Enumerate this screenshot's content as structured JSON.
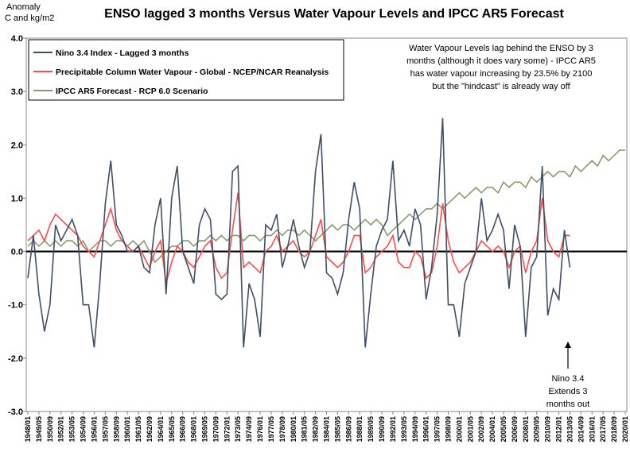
{
  "chart_data": {
    "type": "line",
    "title": "ENSO lagged 3 months Versus Water Vapour Levels and IPCC AR5 Forecast",
    "ylabel": [
      "Anomaly",
      "C and kg/m2"
    ],
    "annotations": [
      {
        "lines": [
          "Water Vapour Levels lag behind the ENSO by 3",
          "months (although it does vary some) - IPCC AR5",
          "has water vapour increasing by 23.5% by 2100",
          "but the \"hindcast\" is already way off"
        ]
      },
      {
        "lines": [
          "Nino 3.4",
          "Extends 3",
          "months out"
        ]
      }
    ],
    "ylim": [
      -3,
      4
    ],
    "yticks": [
      {
        "value": -3,
        "label": "-3.0"
      },
      {
        "value": -2,
        "label": "-2.0"
      },
      {
        "value": -1,
        "label": "-1.0"
      },
      {
        "value": 0,
        "label": "0.0"
      },
      {
        "value": 1,
        "label": "1.0"
      },
      {
        "value": 2,
        "label": "2.0"
      },
      {
        "value": 3,
        "label": "3.0"
      },
      {
        "value": 4,
        "label": "4.0"
      }
    ],
    "grid": false,
    "legend": "top-left",
    "categories": [
      "1948/01",
      null,
      "1949/05",
      null,
      "1950/09",
      null,
      "1952/01",
      null,
      "1953/05",
      null,
      "1954/09",
      null,
      "1956/01",
      null,
      "1957/05",
      null,
      "1958/09",
      null,
      "1960/01",
      null,
      "1961/05",
      null,
      "1962/09",
      null,
      "1964/01",
      null,
      "1965/05",
      null,
      "1966/09",
      null,
      "1968/01",
      null,
      "1969/05",
      null,
      "1970/09",
      null,
      "1972/01",
      null,
      "1973/05",
      null,
      "1974/09",
      null,
      "1976/01",
      null,
      "1977/05",
      null,
      "1978/09",
      null,
      "1980/01",
      null,
      "1981/05",
      null,
      "1982/09",
      null,
      "1984/01",
      null,
      "1985/05",
      null,
      "1986/09",
      null,
      "1988/01",
      null,
      "1989/05",
      null,
      "1990/09",
      null,
      "1992/01",
      null,
      "1993/05",
      null,
      "1994/09",
      null,
      "1996/01",
      null,
      "1997/05",
      null,
      "1998/09",
      null,
      "2000/01",
      null,
      "2001/05",
      null,
      "2002/09",
      null,
      "2004/01",
      null,
      "2005/05",
      null,
      "2006/09",
      null,
      "2008/01",
      null,
      "2009/05",
      null,
      "2010/09",
      null,
      "2012/01",
      null,
      "2013/05",
      null,
      "2014/09",
      null,
      "2016/01",
      null,
      "2017/05",
      null,
      "2018/09",
      null,
      "2020/01"
    ],
    "series": [
      {
        "name": "Nino 3.4 Index - Lagged 3 months",
        "color": "#3f4f66",
        "values": [
          -0.5,
          0.3,
          -0.8,
          -1.5,
          -1.0,
          0.5,
          0.2,
          0.4,
          0.6,
          0.3,
          -1.0,
          -1.0,
          -1.8,
          -0.6,
          0.9,
          1.7,
          0.5,
          0.3,
          0.0,
          0.0,
          0.1,
          -0.3,
          -0.4,
          0.5,
          1.0,
          -0.8,
          1.0,
          1.6,
          0.0,
          -0.3,
          -0.6,
          0.5,
          0.8,
          0.6,
          -0.8,
          -0.9,
          -0.8,
          1.5,
          1.6,
          -1.8,
          -0.6,
          -0.9,
          -1.6,
          0.5,
          0.4,
          0.7,
          -0.3,
          0.1,
          0.6,
          0.1,
          -0.3,
          0.0,
          1.5,
          2.2,
          -0.4,
          -0.5,
          -0.8,
          -0.4,
          0.6,
          1.3,
          0.8,
          -1.8,
          -0.8,
          0.1,
          0.4,
          0.6,
          1.7,
          0.2,
          0.4,
          0.1,
          0.8,
          0.5,
          -0.9,
          -0.3,
          0.7,
          2.5,
          -1.0,
          -1.0,
          -1.6,
          -0.6,
          -0.3,
          0.0,
          1.0,
          0.2,
          0.4,
          0.7,
          0.4,
          -0.7,
          0.5,
          0.1,
          -1.6,
          -0.3,
          -0.1,
          1.6,
          -1.2,
          -0.7,
          -0.9,
          0.4,
          -0.3,
          null,
          null,
          null,
          null,
          null,
          null,
          null,
          null,
          null,
          null
        ]
      },
      {
        "name": "Precipitable Column Water Vapour - Global - NCEP/NCAR Reanalysis",
        "color": "#ff4b4b",
        "values": [
          0.2,
          0.3,
          0.4,
          0.2,
          0.5,
          0.7,
          0.6,
          0.5,
          0.4,
          0.3,
          0.1,
          0.0,
          -0.1,
          0.2,
          0.5,
          0.8,
          0.4,
          0.2,
          0.1,
          0.0,
          0.1,
          -0.1,
          -0.3,
          0.0,
          0.2,
          -0.6,
          -0.2,
          0.1,
          0.0,
          -0.2,
          -0.3,
          -0.1,
          0.1,
          0.2,
          -0.3,
          -0.5,
          -0.4,
          0.4,
          1.1,
          -0.3,
          -0.2,
          -0.3,
          -0.4,
          0.0,
          0.1,
          0.3,
          0.0,
          0.1,
          0.2,
          0.0,
          -0.1,
          0.0,
          0.3,
          0.6,
          -0.1,
          -0.2,
          -0.3,
          -0.2,
          0.0,
          0.3,
          0.3,
          -0.4,
          -0.3,
          -0.1,
          0.0,
          0.1,
          0.3,
          -0.2,
          -0.3,
          -0.3,
          0.0,
          -0.1,
          -0.5,
          -0.4,
          0.1,
          0.9,
          0.2,
          -0.2,
          -0.4,
          -0.3,
          -0.2,
          0.0,
          0.2,
          0.1,
          0.0,
          0.1,
          0.0,
          -0.3,
          0.0,
          0.1,
          -0.4,
          0.0,
          0.2,
          1.0,
          0.2,
          0.0,
          -0.1,
          0.3,
          0.3,
          null,
          null,
          null,
          null,
          null,
          null,
          null,
          null,
          null,
          null
        ]
      },
      {
        "name": "IPCC AR5 Forecast - RCP 6.0 Scenario",
        "color": "#8a9a6c",
        "values": [
          0.1,
          0.2,
          0.1,
          0.2,
          0.1,
          0.2,
          0.1,
          0.2,
          0.2,
          0.1,
          0.2,
          0.0,
          0.1,
          0.2,
          0.2,
          0.1,
          0.2,
          0.2,
          0.1,
          0.2,
          0.1,
          0.2,
          0.0,
          -0.2,
          -0.1,
          0.0,
          0.1,
          0.1,
          0.2,
          0.2,
          0.1,
          0.2,
          0.2,
          0.3,
          0.2,
          0.3,
          0.2,
          0.3,
          0.3,
          0.2,
          0.3,
          0.3,
          0.2,
          0.3,
          0.3,
          0.4,
          0.3,
          0.4,
          0.4,
          0.3,
          0.4,
          0.3,
          0.2,
          0.3,
          0.4,
          0.5,
          0.4,
          0.5,
          0.5,
          0.4,
          0.5,
          0.6,
          0.5,
          0.6,
          0.5,
          0.3,
          0.4,
          0.5,
          0.6,
          0.7,
          0.6,
          0.7,
          0.8,
          0.8,
          0.9,
          0.8,
          0.9,
          1.0,
          1.1,
          1.0,
          1.1,
          1.2,
          1.1,
          1.2,
          1.2,
          1.1,
          1.3,
          1.2,
          1.3,
          1.3,
          1.2,
          1.4,
          1.3,
          1.4,
          1.5,
          1.4,
          1.5,
          1.5,
          1.4,
          1.6,
          1.5,
          1.6,
          1.7,
          1.6,
          1.8,
          1.7,
          1.8,
          1.9,
          1.9
        ]
      }
    ]
  }
}
